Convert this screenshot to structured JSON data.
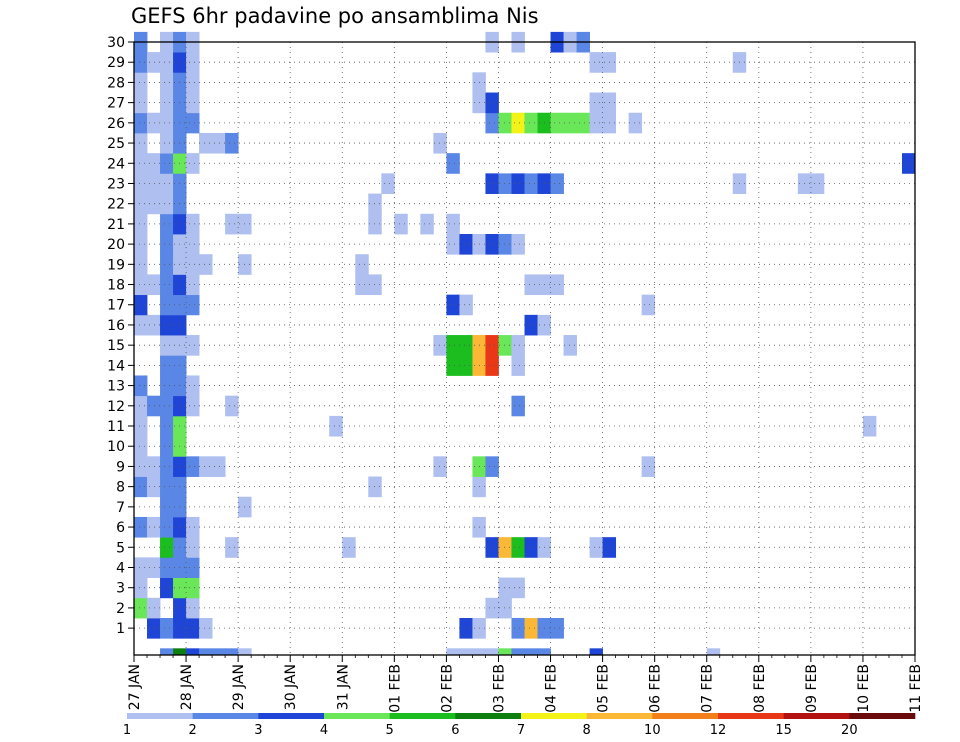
{
  "chart_data": {
    "type": "heatmap",
    "title": "GEFS 6hr padavine po ansamblima Nis",
    "x_ticks": [
      "27 JAN",
      "28 JAN",
      "29 JAN",
      "30 JAN",
      "31 JAN",
      "01 FEB",
      "02 FEB",
      "03 FEB",
      "04 FEB",
      "05 FEB",
      "06 FEB",
      "07 FEB",
      "08 FEB",
      "09 FEB",
      "10 FEB",
      "11 FEB"
    ],
    "y_ticks": [
      "1",
      "2",
      "3",
      "4",
      "5",
      "6",
      "7",
      "8",
      "9",
      "10",
      "11",
      "12",
      "13",
      "14",
      "15",
      "16",
      "17",
      "18",
      "19",
      "20",
      "21",
      "22",
      "23",
      "24",
      "25",
      "26",
      "27",
      "28",
      "29",
      "30"
    ],
    "x_range": [
      "27 JAN 00",
      "11 FEB 00"
    ],
    "time_step_hours": 6,
    "y_range": [
      0,
      30
    ],
    "grid": "dotted",
    "legend": {
      "placement": "bottom",
      "labels": [
        "1",
        "2",
        "3",
        "4",
        "5",
        "6",
        "7",
        "8",
        "10",
        "12",
        "15",
        "20"
      ],
      "colors": [
        "#aebff0",
        "#5a86e6",
        "#1f45d6",
        "#6ae659",
        "#1bbd1f",
        "#0c7f0e",
        "#f3f317",
        "#fbb736",
        "#f37f18",
        "#e83818",
        "#b41212",
        "#6a0a0a"
      ]
    },
    "cells": [
      [
        1,
        1,
        3
      ],
      [
        1,
        2,
        2
      ],
      [
        1,
        3,
        3
      ],
      [
        1,
        4,
        3
      ],
      [
        1,
        5,
        1
      ],
      [
        1,
        25,
        3
      ],
      [
        1,
        26,
        1
      ],
      [
        1,
        29,
        2
      ],
      [
        1,
        30,
        8
      ],
      [
        1,
        31,
        2
      ],
      [
        1,
        32,
        2
      ],
      [
        2,
        0,
        4
      ],
      [
        2,
        1,
        1
      ],
      [
        2,
        3,
        3
      ],
      [
        2,
        4,
        1
      ],
      [
        2,
        27,
        1
      ],
      [
        2,
        28,
        1
      ],
      [
        3,
        0,
        1
      ],
      [
        3,
        2,
        3
      ],
      [
        3,
        3,
        4
      ],
      [
        3,
        4,
        4
      ],
      [
        3,
        28,
        1
      ],
      [
        3,
        29,
        1
      ],
      [
        4,
        0,
        1
      ],
      [
        4,
        1,
        1
      ],
      [
        4,
        2,
        2
      ],
      [
        4,
        3,
        2
      ],
      [
        4,
        4,
        2
      ],
      [
        5,
        2,
        5
      ],
      [
        5,
        3,
        2
      ],
      [
        5,
        4,
        1
      ],
      [
        5,
        7,
        1
      ],
      [
        5,
        16,
        1
      ],
      [
        5,
        27,
        3
      ],
      [
        5,
        28,
        8
      ],
      [
        5,
        29,
        5
      ],
      [
        5,
        30,
        3
      ],
      [
        5,
        31,
        1
      ],
      [
        5,
        35,
        1
      ],
      [
        5,
        36,
        3
      ],
      [
        6,
        0,
        2
      ],
      [
        6,
        1,
        1
      ],
      [
        6,
        2,
        2
      ],
      [
        6,
        3,
        3
      ],
      [
        6,
        4,
        1
      ],
      [
        6,
        26,
        1
      ],
      [
        7,
        2,
        2
      ],
      [
        7,
        3,
        2
      ],
      [
        7,
        8,
        1
      ],
      [
        8,
        0,
        2
      ],
      [
        8,
        1,
        1
      ],
      [
        8,
        2,
        2
      ],
      [
        8,
        3,
        2
      ],
      [
        8,
        18,
        1
      ],
      [
        8,
        26,
        1
      ],
      [
        9,
        0,
        1
      ],
      [
        9,
        1,
        1
      ],
      [
        9,
        2,
        2
      ],
      [
        9,
        3,
        3
      ],
      [
        9,
        4,
        2
      ],
      [
        9,
        5,
        1
      ],
      [
        9,
        6,
        1
      ],
      [
        9,
        23,
        1
      ],
      [
        9,
        26,
        4
      ],
      [
        9,
        27,
        2
      ],
      [
        9,
        39,
        1
      ],
      [
        10,
        0,
        1
      ],
      [
        10,
        2,
        2
      ],
      [
        10,
        3,
        4
      ],
      [
        11,
        0,
        1
      ],
      [
        11,
        2,
        2
      ],
      [
        11,
        3,
        4
      ],
      [
        11,
        15,
        1
      ],
      [
        11,
        56,
        1
      ],
      [
        12,
        0,
        1
      ],
      [
        12,
        1,
        2
      ],
      [
        12,
        2,
        2
      ],
      [
        12,
        3,
        3
      ],
      [
        12,
        4,
        1
      ],
      [
        12,
        7,
        1
      ],
      [
        12,
        29,
        2
      ],
      [
        13,
        0,
        2
      ],
      [
        13,
        2,
        2
      ],
      [
        13,
        3,
        2
      ],
      [
        13,
        4,
        1
      ],
      [
        14,
        2,
        2
      ],
      [
        14,
        3,
        2
      ],
      [
        14,
        24,
        5
      ],
      [
        14,
        25,
        5
      ],
      [
        14,
        26,
        8
      ],
      [
        14,
        27,
        10
      ],
      [
        14,
        29,
        1
      ],
      [
        15,
        2,
        1
      ],
      [
        15,
        3,
        1
      ],
      [
        15,
        4,
        1
      ],
      [
        15,
        23,
        1
      ],
      [
        15,
        24,
        5
      ],
      [
        15,
        25,
        5
      ],
      [
        15,
        26,
        8
      ],
      [
        15,
        27,
        10
      ],
      [
        15,
        28,
        4
      ],
      [
        15,
        29,
        1
      ],
      [
        15,
        33,
        1
      ],
      [
        16,
        0,
        1
      ],
      [
        16,
        1,
        1
      ],
      [
        16,
        2,
        3
      ],
      [
        16,
        3,
        3
      ],
      [
        16,
        30,
        3
      ],
      [
        16,
        31,
        1
      ],
      [
        17,
        0,
        3
      ],
      [
        17,
        2,
        2
      ],
      [
        17,
        3,
        2
      ],
      [
        17,
        4,
        2
      ],
      [
        17,
        24,
        3
      ],
      [
        17,
        25,
        1
      ],
      [
        17,
        39,
        1
      ],
      [
        18,
        0,
        1
      ],
      [
        18,
        1,
        1
      ],
      [
        18,
        2,
        2
      ],
      [
        18,
        3,
        3
      ],
      [
        18,
        4,
        1
      ],
      [
        18,
        17,
        1
      ],
      [
        18,
        18,
        1
      ],
      [
        18,
        30,
        1
      ],
      [
        18,
        31,
        1
      ],
      [
        18,
        32,
        1
      ],
      [
        19,
        0,
        1
      ],
      [
        19,
        2,
        2
      ],
      [
        19,
        3,
        1
      ],
      [
        19,
        4,
        1
      ],
      [
        19,
        5,
        1
      ],
      [
        19,
        8,
        1
      ],
      [
        19,
        17,
        1
      ],
      [
        20,
        0,
        1
      ],
      [
        20,
        2,
        2
      ],
      [
        20,
        3,
        1
      ],
      [
        20,
        4,
        1
      ],
      [
        20,
        24,
        1
      ],
      [
        20,
        25,
        3
      ],
      [
        20,
        26,
        1
      ],
      [
        20,
        27,
        3
      ],
      [
        20,
        28,
        2
      ],
      [
        20,
        29,
        1
      ],
      [
        21,
        0,
        1
      ],
      [
        21,
        2,
        2
      ],
      [
        21,
        3,
        3
      ],
      [
        21,
        4,
        1
      ],
      [
        21,
        7,
        1
      ],
      [
        21,
        8,
        1
      ],
      [
        21,
        18,
        1
      ],
      [
        21,
        20,
        1
      ],
      [
        21,
        22,
        1
      ],
      [
        21,
        24,
        1
      ],
      [
        22,
        0,
        1
      ],
      [
        22,
        1,
        1
      ],
      [
        22,
        2,
        1
      ],
      [
        22,
        3,
        2
      ],
      [
        22,
        18,
        1
      ],
      [
        23,
        0,
        1
      ],
      [
        23,
        1,
        1
      ],
      [
        23,
        2,
        1
      ],
      [
        23,
        3,
        2
      ],
      [
        23,
        19,
        1
      ],
      [
        23,
        27,
        3
      ],
      [
        23,
        28,
        2
      ],
      [
        23,
        29,
        3
      ],
      [
        23,
        30,
        2
      ],
      [
        23,
        31,
        3
      ],
      [
        23,
        32,
        2
      ],
      [
        23,
        46,
        1
      ],
      [
        23,
        51,
        1
      ],
      [
        23,
        52,
        1
      ],
      [
        24,
        0,
        1
      ],
      [
        24,
        1,
        1
      ],
      [
        24,
        2,
        2
      ],
      [
        24,
        3,
        4
      ],
      [
        24,
        4,
        1
      ],
      [
        24,
        24,
        2
      ],
      [
        24,
        59,
        3
      ],
      [
        25,
        0,
        1
      ],
      [
        25,
        2,
        1
      ],
      [
        25,
        3,
        2
      ],
      [
        25,
        5,
        1
      ],
      [
        25,
        6,
        1
      ],
      [
        25,
        7,
        2
      ],
      [
        25,
        23,
        1
      ],
      [
        26,
        0,
        2
      ],
      [
        26,
        1,
        1
      ],
      [
        26,
        2,
        1
      ],
      [
        26,
        3,
        2
      ],
      [
        26,
        4,
        2
      ],
      [
        26,
        27,
        2
      ],
      [
        26,
        28,
        4
      ],
      [
        26,
        29,
        7
      ],
      [
        26,
        30,
        4
      ],
      [
        26,
        31,
        5
      ],
      [
        26,
        32,
        4
      ],
      [
        26,
        33,
        4
      ],
      [
        26,
        34,
        4
      ],
      [
        26,
        35,
        1
      ],
      [
        26,
        36,
        1
      ],
      [
        26,
        38,
        1
      ],
      [
        27,
        0,
        1
      ],
      [
        27,
        2,
        1
      ],
      [
        27,
        3,
        2
      ],
      [
        27,
        4,
        1
      ],
      [
        27,
        26,
        1
      ],
      [
        27,
        27,
        3
      ],
      [
        27,
        35,
        1
      ],
      [
        27,
        36,
        1
      ],
      [
        28,
        0,
        1
      ],
      [
        28,
        2,
        1
      ],
      [
        28,
        3,
        2
      ],
      [
        28,
        4,
        1
      ],
      [
        28,
        26,
        1
      ],
      [
        29,
        0,
        2
      ],
      [
        29,
        1,
        1
      ],
      [
        29,
        2,
        1
      ],
      [
        29,
        3,
        3
      ],
      [
        29,
        4,
        1
      ],
      [
        29,
        35,
        1
      ],
      [
        29,
        36,
        1
      ],
      [
        29,
        46,
        1
      ],
      [
        30,
        0,
        2
      ],
      [
        30,
        2,
        1
      ],
      [
        30,
        3,
        2
      ],
      [
        30,
        4,
        1
      ],
      [
        30,
        27,
        1
      ],
      [
        30,
        29,
        1
      ],
      [
        30,
        32,
        3
      ],
      [
        30,
        33,
        1
      ],
      [
        30,
        34,
        2
      ]
    ],
    "bottom_row": [
      [
        2,
        2
      ],
      [
        3,
        6
      ],
      [
        4,
        3
      ],
      [
        5,
        2
      ],
      [
        6,
        2
      ],
      [
        7,
        2
      ],
      [
        8,
        1
      ],
      [
        24,
        1
      ],
      [
        25,
        1
      ],
      [
        26,
        1
      ],
      [
        27,
        1
      ],
      [
        28,
        4
      ],
      [
        29,
        2
      ],
      [
        30,
        2
      ],
      [
        31,
        2
      ],
      [
        35,
        3
      ],
      [
        44,
        1
      ]
    ],
    "color_levels": [
      "#aebff0",
      "#5a86e6",
      "#1f45d6",
      "#6ae659",
      "#1bbd1f",
      "#0c7f0e",
      "#f3f317",
      "#fbb736",
      "#f37f18",
      "#e83818",
      "#b41212",
      "#6a0a0a"
    ]
  }
}
